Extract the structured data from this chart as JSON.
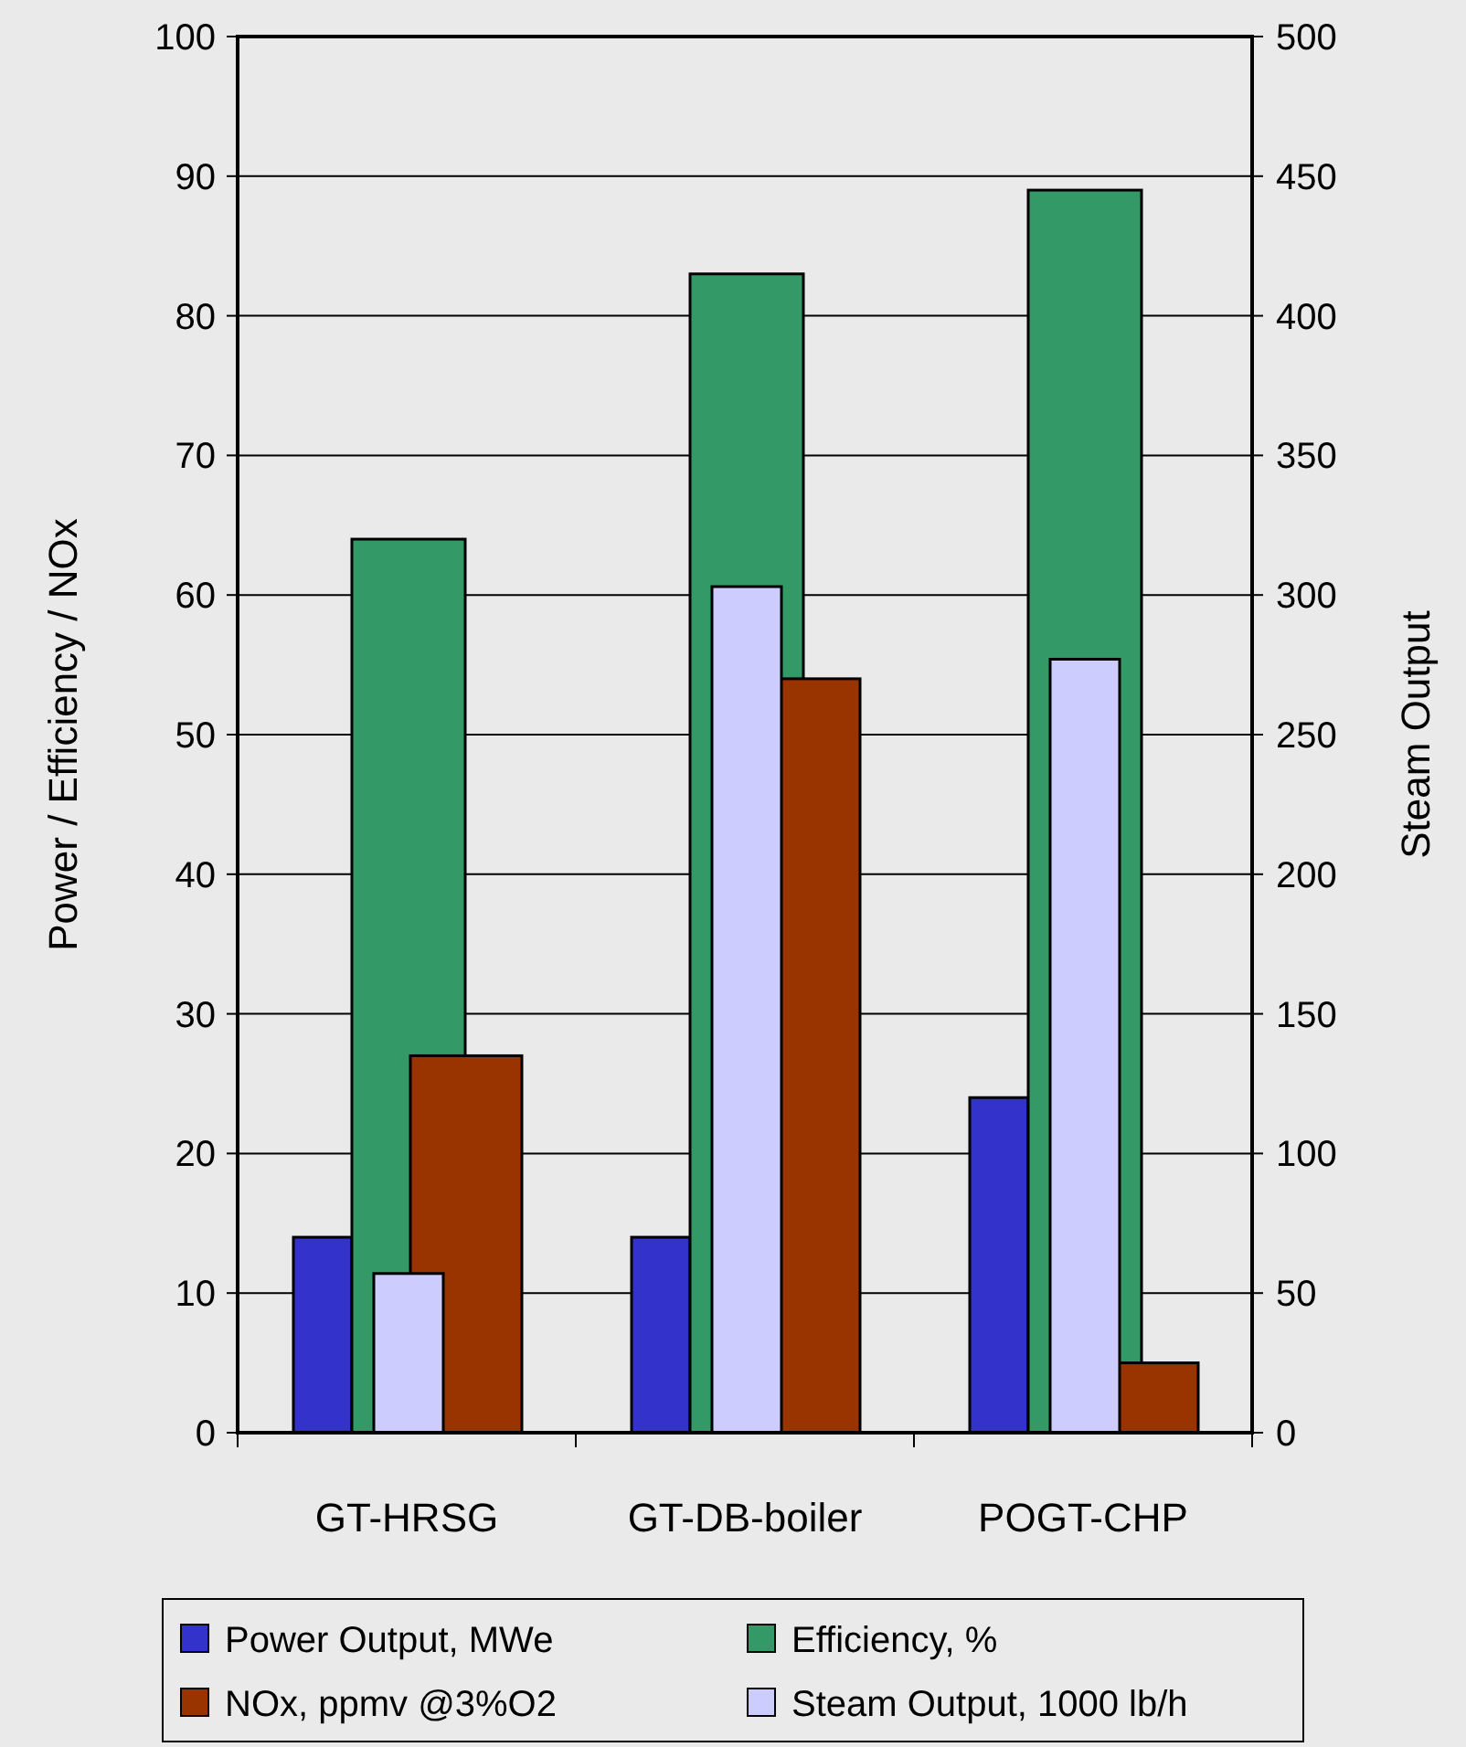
{
  "chart_data": {
    "type": "bar",
    "ylabel": "Power / Efficiency / NOx",
    "y2label": "Steam Output",
    "categories": [
      "GT-HRSG",
      "GT-DB-boiler",
      "POGT-CHP"
    ],
    "series": [
      {
        "name": "Power Output,  MWe",
        "color": "#3333cc",
        "values": [
          14,
          14,
          24
        ]
      },
      {
        "name": "Efficiency, %",
        "color": "#339966",
        "values": [
          64,
          83,
          89
        ]
      },
      {
        "name": "NOx, ppmv @3%O2",
        "color": "#993300",
        "values": [
          27,
          54,
          5
        ]
      },
      {
        "name": "Steam Output, 1000 lb/h",
        "color": "#ccccff",
        "values": [
          57,
          303,
          277
        ],
        "axis": "y2"
      }
    ],
    "ylim": [
      0,
      100
    ],
    "yticks": [
      0,
      10,
      20,
      30,
      40,
      50,
      60,
      70,
      80,
      90,
      100
    ],
    "y2lim": [
      0,
      500
    ],
    "y2ticks": [
      0,
      50,
      100,
      150,
      200,
      250,
      300,
      350,
      400,
      450,
      500
    ],
    "grid": "y",
    "legend": "bottom"
  }
}
